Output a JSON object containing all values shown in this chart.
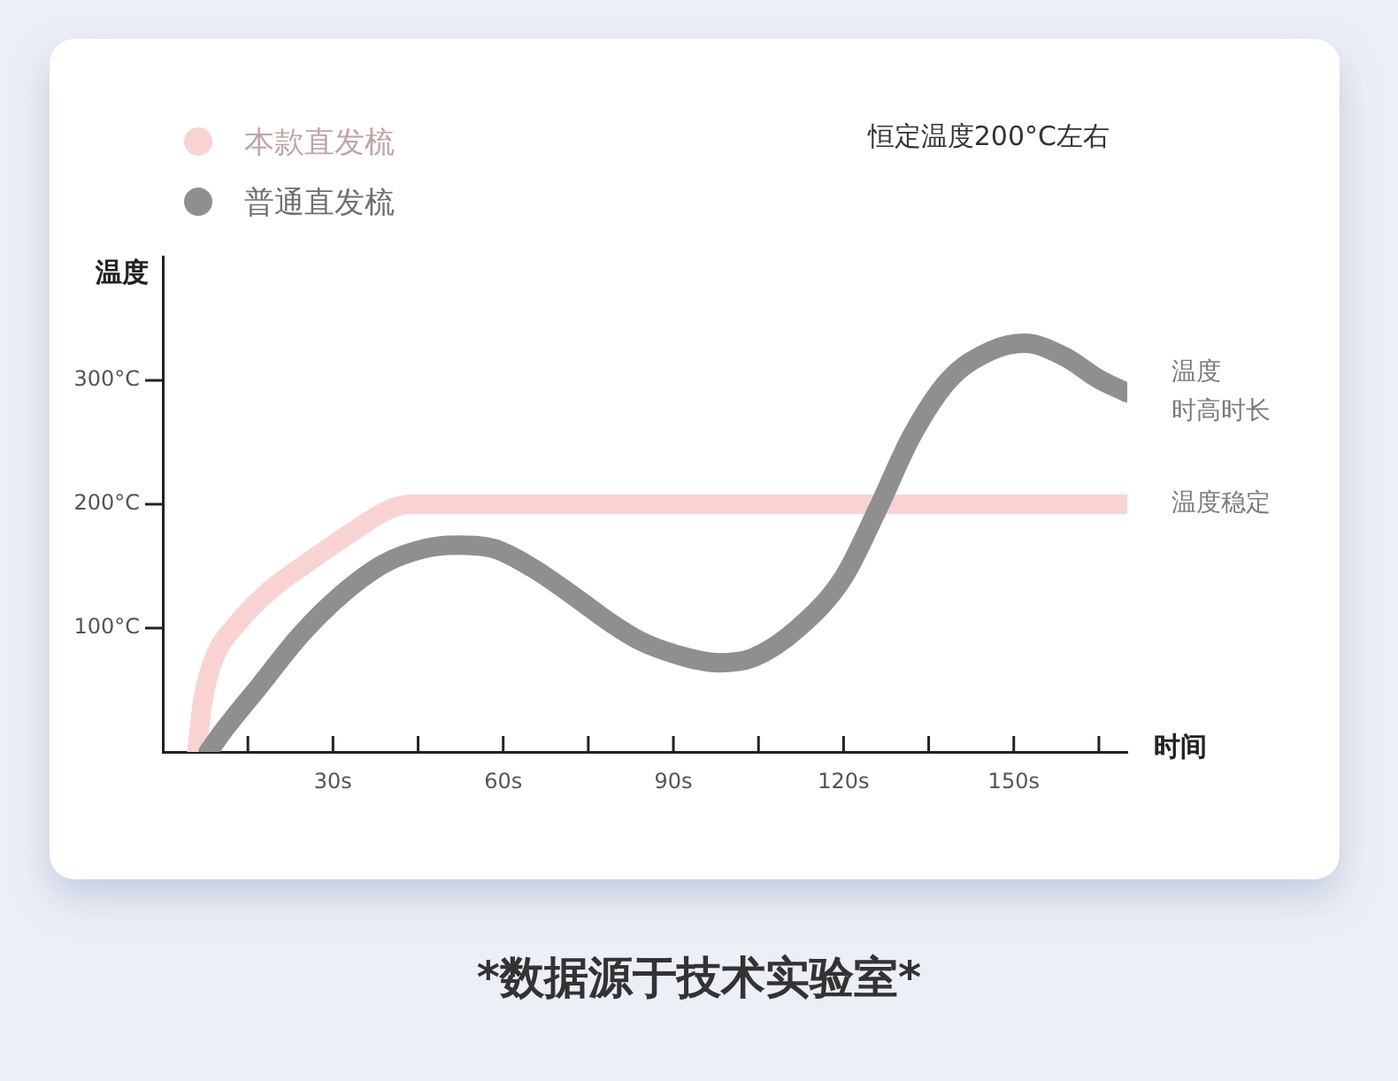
{
  "chart_data": {
    "type": "line",
    "xlabel": "时间",
    "ylabel": "温度",
    "legend": "top left",
    "annotations": [
      "恒定温度200°C左右",
      {
        "text": "温度时高时长",
        "x": 170,
        "y": 290
      },
      {
        "text": "温度稳定",
        "x": 170,
        "y": 200
      },
      "*数据源于技术实验室*"
    ],
    "xlim": [
      0,
      170
    ],
    "xticks": [
      {
        "value": 15,
        "label": null
      },
      {
        "value": 30,
        "label": "30s"
      },
      {
        "value": 45,
        "label": null
      },
      {
        "value": 60,
        "label": "60s"
      },
      {
        "value": 75,
        "label": null
      },
      {
        "value": 90,
        "label": "90s"
      },
      {
        "value": 105,
        "label": null
      },
      {
        "value": 120,
        "label": "120s"
      },
      {
        "value": 135,
        "label": null
      },
      {
        "value": 150,
        "label": "150s"
      },
      {
        "value": 165,
        "label": null
      }
    ],
    "ylim": [
      0,
      400
    ],
    "yticks": [
      {
        "value": 100,
        "label": "100°C"
      },
      {
        "value": 200,
        "label": "200°C"
      },
      {
        "value": 300,
        "label": "300°C"
      }
    ],
    "series": [
      {
        "name": "本款直发梳",
        "color": "#f9d2d2",
        "x": [
          6,
          7,
          9,
          13,
          19,
          26.5,
          33.5,
          40,
          44,
          60,
          90,
          120,
          150,
          170
        ],
        "values": [
          0,
          40,
          75,
          103,
          131,
          156,
          178,
          196,
          200,
          200,
          200,
          200,
          200,
          200
        ]
      },
      {
        "name": "普通直发梳",
        "color": "#8f8f8f",
        "x": [
          8,
          11,
          17,
          24,
          31.5,
          39,
          46,
          52,
          58.5,
          65,
          73,
          79,
          84,
          91,
          98,
          104,
          112,
          120,
          126,
          132,
          138.5,
          146,
          152,
          159,
          165,
          170
        ],
        "values": [
          0,
          19,
          53,
          93,
          127,
          152,
          164,
          167,
          164,
          149,
          124,
          104,
          90,
          78,
          72,
          76,
          100,
          141,
          196,
          255,
          300,
          324,
          330,
          319,
          301,
          290
        ]
      }
    ]
  }
}
